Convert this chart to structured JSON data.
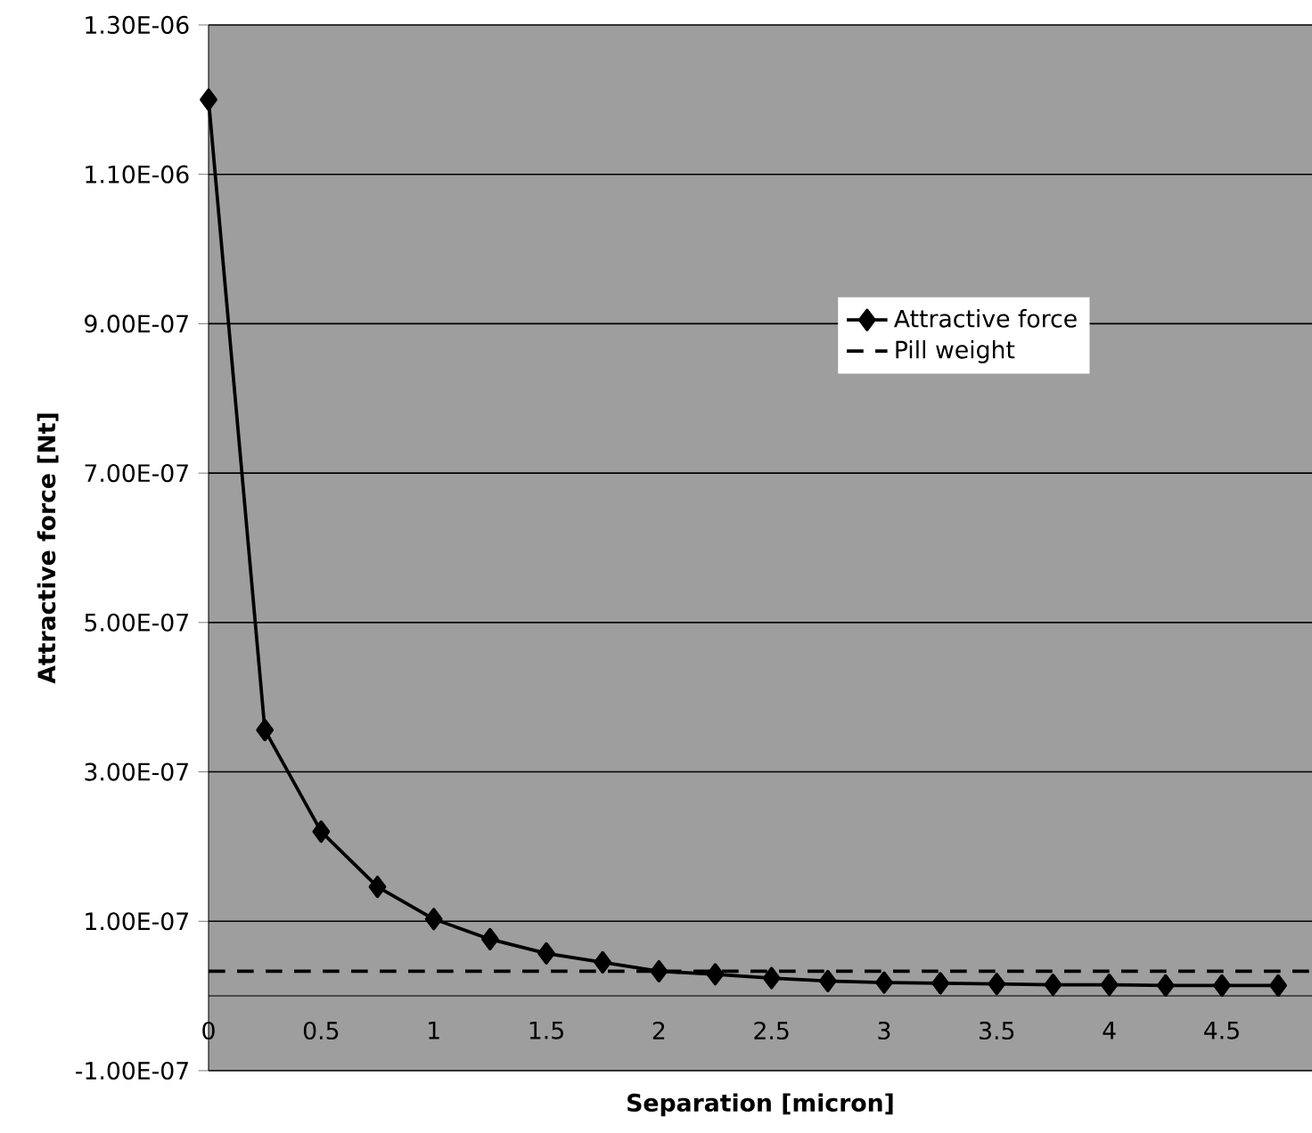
{
  "chart_data": {
    "type": "line",
    "xlabel": "Separation [micron]",
    "ylabel": "Attractive force [Nt]",
    "xlim": [
      0,
      4.9
    ],
    "xticks": [
      0,
      0.5,
      1,
      1.5,
      2,
      2.5,
      3,
      3.5,
      4,
      4.5
    ],
    "ylim": [
      -1e-07,
      1.3e-06
    ],
    "yticks": [
      {
        "value": -1e-07,
        "label": "-1.00E-07"
      },
      {
        "value": 1e-07,
        "label": "1.00E-07"
      },
      {
        "value": 3e-07,
        "label": "3.00E-07"
      },
      {
        "value": 5e-07,
        "label": "5.00E-07"
      },
      {
        "value": 7e-07,
        "label": "7.00E-07"
      },
      {
        "value": 9e-07,
        "label": "9.00E-07"
      },
      {
        "value": 1.1e-06,
        "label": "1.10E-06"
      },
      {
        "value": 1.3e-06,
        "label": "1.30E-06"
      }
    ],
    "grid": "y",
    "legend": "right",
    "marker": "diamond",
    "series": [
      {
        "name": "Attractive force",
        "color": "#000000",
        "x": [
          0,
          0.25,
          0.5,
          0.75,
          1,
          1.25,
          1.5,
          1.75,
          2,
          2.25,
          2.5,
          2.75,
          3,
          3.25,
          3.5,
          3.75,
          4,
          4.25,
          4.5,
          4.75
        ],
        "values": [
          1.2e-06,
          3.56e-07,
          2.2e-07,
          1.46e-07,
          1.03e-07,
          7.6e-08,
          5.7e-08,
          4.5e-08,
          3.3e-08,
          2.9e-08,
          2.4e-08,
          2e-08,
          1.8e-08,
          1.7e-08,
          1.6e-08,
          1.5e-08,
          1.5e-08,
          1.4e-08,
          1.4e-08,
          1.4e-08
        ]
      },
      {
        "name": "Pill weight",
        "color": "#000000",
        "x": [
          0,
          4.9
        ],
        "values": [
          3.3e-08,
          3.3e-08
        ],
        "marker": "none",
        "line_style": "dashed"
      }
    ]
  }
}
